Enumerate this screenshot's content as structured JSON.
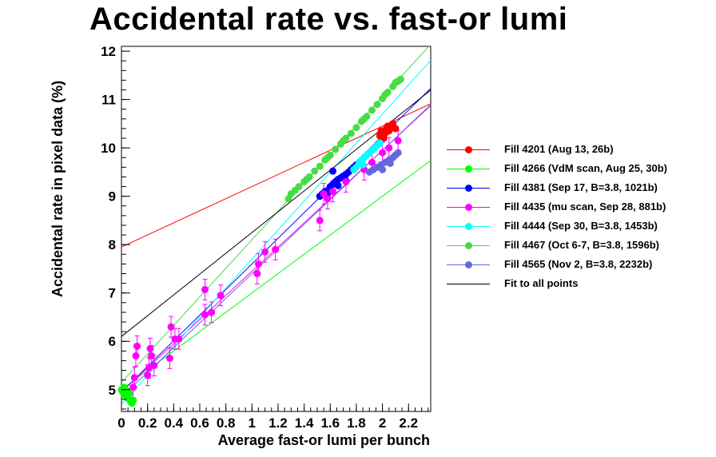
{
  "title": "Accidental rate vs. fast-or lumi",
  "chart_data": {
    "type": "scatter",
    "title": "Accidental rate vs. fast-or lumi",
    "xlabel": "Average fast-or lumi per bunch",
    "ylabel": "Accidental rate in pixel data (%)",
    "xlim": [
      0,
      2.37
    ],
    "ylim": [
      4.55,
      12.1
    ],
    "x_ticks": [
      "0",
      "0.2",
      "0.4",
      "0.6",
      "0.8",
      "1",
      "1.2",
      "1.4",
      "1.6",
      "1.8",
      "2",
      "2.2"
    ],
    "x_tick_values": [
      0,
      0.2,
      0.4,
      0.6,
      0.8,
      1.0,
      1.2,
      1.4,
      1.6,
      1.8,
      2.0,
      2.2
    ],
    "y_ticks": [
      "5",
      "6",
      "7",
      "8",
      "9",
      "10",
      "11",
      "12"
    ],
    "y_tick_values": [
      5,
      6,
      7,
      8,
      9,
      10,
      11,
      12
    ],
    "grid": false,
    "legend_position": "right",
    "series": [
      {
        "name": "Fill 4201 (Aug 13, 26b)",
        "color": "#ff0000",
        "fit": [
          7.95,
          1.25
        ],
        "points": [
          [
            1.98,
            10.25
          ],
          [
            2.0,
            10.35
          ],
          [
            2.02,
            10.3
          ],
          [
            2.04,
            10.45
          ],
          [
            2.06,
            10.4
          ],
          [
            2.08,
            10.5
          ],
          [
            2.1,
            10.4
          ],
          [
            1.99,
            10.35
          ],
          [
            2.03,
            10.4
          ],
          [
            2.07,
            10.45
          ],
          [
            2.01,
            10.2
          ],
          [
            2.05,
            10.35
          ]
        ]
      },
      {
        "name": "Fill 4266 (VdM scan, Aug 25, 30b)",
        "color": "#00ff00",
        "fit": [
          5.0,
          2.0
        ],
        "points": [
          [
            0.0,
            5.0
          ],
          [
            0.01,
            4.95
          ],
          [
            0.02,
            4.9
          ],
          [
            0.03,
            4.88
          ],
          [
            0.04,
            4.85
          ],
          [
            0.05,
            4.82
          ],
          [
            0.06,
            4.8
          ],
          [
            0.07,
            4.75
          ],
          [
            0.08,
            4.72
          ],
          [
            0.09,
            4.78
          ],
          [
            0.02,
            5.05
          ],
          [
            0.04,
            4.98
          ],
          [
            0.06,
            4.92
          ]
        ]
      },
      {
        "name": "Fill 4381 (Sep 17, B=3.8, 1021b)",
        "color": "#0000ff",
        "fit": [
          4.95,
          2.65
        ],
        "points": [
          [
            1.52,
            9.0
          ],
          [
            1.54,
            9.05
          ],
          [
            1.56,
            9.1
          ],
          [
            1.58,
            9.12
          ],
          [
            1.6,
            9.2
          ],
          [
            1.62,
            9.25
          ],
          [
            1.64,
            9.3
          ],
          [
            1.66,
            9.35
          ],
          [
            1.68,
            9.38
          ],
          [
            1.7,
            9.42
          ],
          [
            1.72,
            9.45
          ],
          [
            1.74,
            9.5
          ],
          [
            1.76,
            9.55
          ],
          [
            1.78,
            9.6
          ],
          [
            1.8,
            9.65
          ],
          [
            1.62,
            9.52
          ],
          [
            1.58,
            9.05
          ],
          [
            1.66,
            9.22
          ],
          [
            1.72,
            9.32
          ]
        ]
      },
      {
        "name": "Fill 4435 (mu scan, Sep 28, 881b)",
        "color": "#ff00ff",
        "fit": [
          4.95,
          2.5
        ],
        "points": [
          [
            0.09,
            5.05
          ],
          [
            0.1,
            5.25
          ],
          [
            0.11,
            5.7
          ],
          [
            0.12,
            5.9
          ],
          [
            0.2,
            5.3
          ],
          [
            0.21,
            5.45
          ],
          [
            0.22,
            5.85
          ],
          [
            0.23,
            5.7
          ],
          [
            0.25,
            5.5
          ],
          [
            0.37,
            5.65
          ],
          [
            0.38,
            6.3
          ],
          [
            0.41,
            6.05
          ],
          [
            0.44,
            6.05
          ],
          [
            0.64,
            7.07
          ],
          [
            0.64,
            6.55
          ],
          [
            0.69,
            6.6
          ],
          [
            0.76,
            6.95
          ],
          [
            1.04,
            7.4
          ],
          [
            1.05,
            7.6
          ],
          [
            1.1,
            7.85
          ],
          [
            1.18,
            7.9
          ],
          [
            1.52,
            8.5
          ],
          [
            1.58,
            8.95
          ],
          [
            1.55,
            9.05
          ],
          [
            1.62,
            9.1
          ],
          [
            1.72,
            9.3
          ],
          [
            1.86,
            9.55
          ],
          [
            1.92,
            9.7
          ],
          [
            2.0,
            9.9
          ],
          [
            2.05,
            10.0
          ],
          [
            2.12,
            10.15
          ]
        ]
      },
      {
        "name": "Fill 4444 (Sep 30, B=3.8, 1453b)",
        "color": "#00ffff",
        "fit": [
          4.7,
          3.0
        ],
        "points": [
          [
            1.78,
            9.55
          ],
          [
            1.8,
            9.6
          ],
          [
            1.82,
            9.68
          ],
          [
            1.84,
            9.75
          ],
          [
            1.86,
            9.8
          ],
          [
            1.88,
            9.85
          ],
          [
            1.9,
            9.9
          ],
          [
            1.92,
            9.95
          ],
          [
            1.94,
            10.0
          ],
          [
            1.96,
            10.05
          ],
          [
            1.98,
            10.1
          ],
          [
            1.85,
            9.65
          ]
        ]
      },
      {
        "name": "Fill 4467 (Oct 6-7, B=3.8, 1596b)",
        "color": "#44dd44",
        "fit": [
          5.15,
          2.95
        ],
        "points": [
          [
            1.28,
            8.95
          ],
          [
            1.3,
            9.05
          ],
          [
            1.33,
            9.12
          ],
          [
            1.36,
            9.2
          ],
          [
            1.4,
            9.3
          ],
          [
            1.44,
            9.4
          ],
          [
            1.48,
            9.52
          ],
          [
            1.52,
            9.62
          ],
          [
            1.56,
            9.75
          ],
          [
            1.6,
            9.85
          ],
          [
            1.64,
            9.97
          ],
          [
            1.68,
            10.08
          ],
          [
            1.72,
            10.2
          ],
          [
            1.76,
            10.3
          ],
          [
            1.8,
            10.42
          ],
          [
            1.84,
            10.55
          ],
          [
            1.88,
            10.65
          ],
          [
            1.92,
            10.78
          ],
          [
            1.96,
            10.9
          ],
          [
            2.0,
            11.02
          ],
          [
            2.04,
            11.15
          ],
          [
            2.08,
            11.27
          ],
          [
            2.12,
            11.38
          ],
          [
            2.14,
            11.42
          ],
          [
            1.42,
            9.35
          ],
          [
            1.58,
            9.8
          ],
          [
            1.7,
            10.15
          ],
          [
            1.86,
            10.6
          ],
          [
            2.02,
            11.1
          ],
          [
            2.1,
            11.35
          ]
        ]
      },
      {
        "name": "Fill 4565 (Nov 2, B=3.8, 2232b)",
        "color": "#6666dd",
        "fit": [
          4.85,
          2.55
        ],
        "points": [
          [
            1.9,
            9.5
          ],
          [
            1.93,
            9.55
          ],
          [
            1.96,
            9.6
          ],
          [
            1.99,
            9.65
          ],
          [
            2.02,
            9.7
          ],
          [
            2.05,
            9.75
          ],
          [
            2.08,
            9.8
          ],
          [
            2.1,
            9.85
          ],
          [
            2.12,
            9.9
          ],
          [
            2.0,
            9.55
          ],
          [
            2.06,
            9.68
          ]
        ]
      },
      {
        "name": "Fit to all points",
        "color": "#000000",
        "fit": [
          6.1,
          2.15
        ],
        "points": []
      }
    ]
  }
}
